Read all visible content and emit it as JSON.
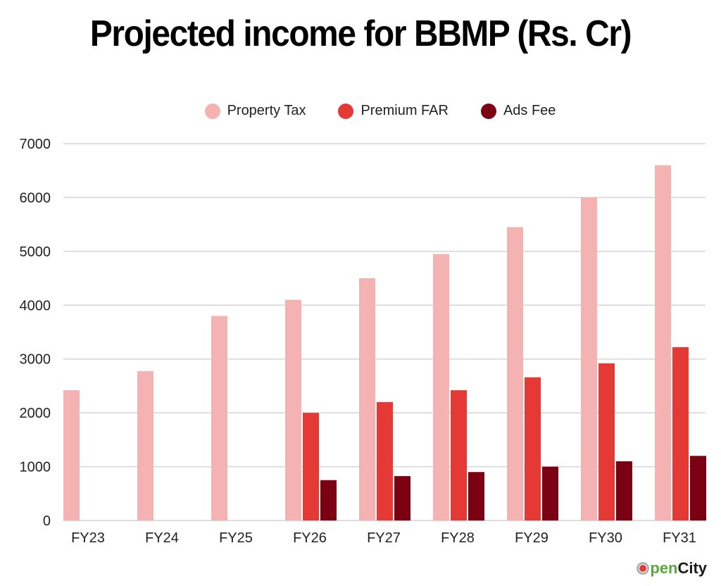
{
  "chart_data": {
    "type": "bar",
    "title": "Projected income for BBMP (Rs. Cr)",
    "xlabel": "",
    "ylabel": "",
    "categories": [
      "FY23",
      "FY24",
      "FY25",
      "FY26",
      "FY27",
      "FY28",
      "FY29",
      "FY30",
      "FY31"
    ],
    "series": [
      {
        "name": "Property Tax",
        "color": "#F4B2B2",
        "values": [
          2420,
          2775,
          3800,
          4100,
          4500,
          4950,
          5450,
          6000,
          6600
        ]
      },
      {
        "name": "Premium FAR",
        "color": "#E53935",
        "values": [
          null,
          null,
          null,
          2000,
          2200,
          2420,
          2660,
          2920,
          3220
        ]
      },
      {
        "name": "Ads Fee",
        "color": "#7B0012",
        "values": [
          null,
          null,
          null,
          750,
          825,
          900,
          1000,
          1100,
          1200
        ]
      }
    ],
    "ylim": [
      0,
      7000
    ],
    "yticks": [
      "0",
      "1000",
      "2000",
      "3000",
      "4000",
      "5000",
      "6000",
      "7000"
    ],
    "grid": true,
    "legend_position": "top-center"
  },
  "branding": {
    "logo_o": "O",
    "logo_pen": "pen",
    "logo_city": "City",
    "logo_name": "OpenCity"
  }
}
